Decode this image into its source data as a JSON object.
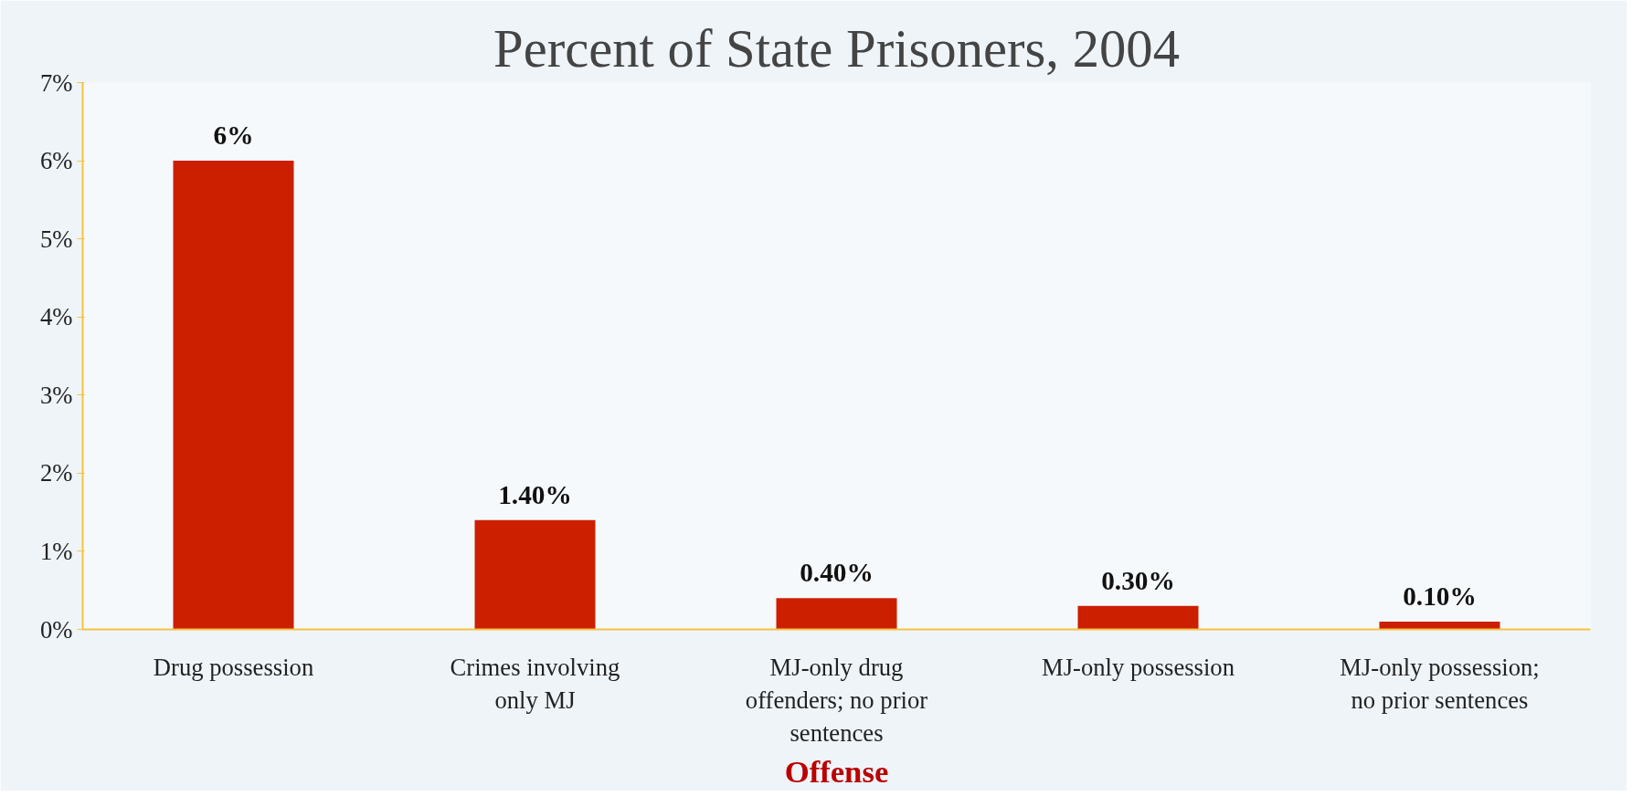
{
  "chart_data": {
    "type": "bar",
    "title": "Percent of State Prisoners, 2004",
    "xlabel": "Offense",
    "categories": [
      "Drug possession",
      "Crimes involving only MJ",
      "MJ-only drug offenders; no prior sentences",
      "MJ-only possession",
      "MJ-only possession; no prior sentences"
    ],
    "values": [
      6,
      1.4,
      0.4,
      0.3,
      0.1
    ],
    "value_labels": [
      "6%",
      "1.40%",
      "0.40%",
      "0.30%",
      "0.10%"
    ],
    "color": "#cc1f00",
    "ylim": [
      0,
      7
    ],
    "yticks": [
      {
        "value": 0,
        "label": "0%"
      },
      {
        "value": 1,
        "label": "1%"
      },
      {
        "value": 2,
        "label": "2%"
      },
      {
        "value": 3,
        "label": "3%"
      },
      {
        "value": 4,
        "label": "4%"
      },
      {
        "value": 5,
        "label": "5%"
      },
      {
        "value": 6,
        "label": "6%"
      },
      {
        "value": 7,
        "label": "7%"
      }
    ],
    "grid": false
  }
}
